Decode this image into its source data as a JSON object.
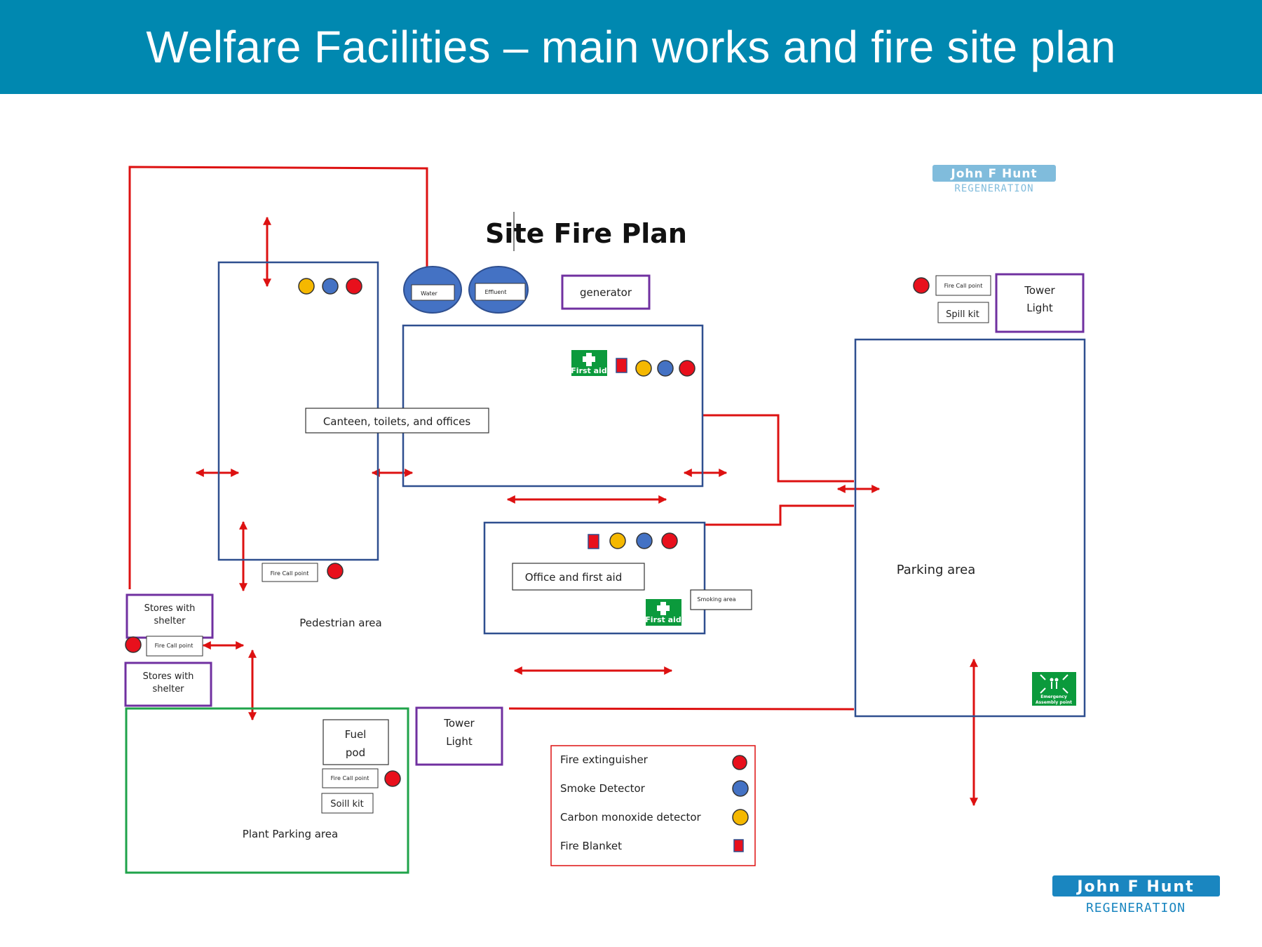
{
  "header": {
    "title": "Welfare Facilities – main works and fire site plan",
    "background": "#0088b0"
  },
  "plan_title": "Site Fire Plan",
  "logo_top": {
    "line1": "John F Hunt",
    "line2": "REGENERATION"
  },
  "logo_bottom": {
    "line1": "John F Hunt",
    "line2": "REGENERATION"
  },
  "tanks": {
    "water": "Water",
    "effluent": "Effluent"
  },
  "labels": {
    "generator": "generator",
    "canteen": "Canteen, toilets, and offices",
    "office": "Office and first aid",
    "smoking_area": "Smoking area",
    "pedestrian_area": "Pedestrian area",
    "parking_area": "Parking area",
    "plant_parking": "Plant Parking area",
    "stores_1": [
      "Stores with",
      "shelter"
    ],
    "stores_2": [
      "Stores with",
      "shelter"
    ],
    "tower_light_top": [
      "Tower",
      "Light"
    ],
    "tower_light_bottom": [
      "Tower",
      "Light"
    ],
    "fuel_pod": [
      "Fuel",
      "pod"
    ],
    "fire_call_point": "Fire Call point",
    "spill_kit_top": "Spill kit",
    "spill_kit_bottom": "Soill kit",
    "first_aid": "First aid",
    "emergency_line1": "Emergency",
    "emergency_line2": "Assembly point"
  },
  "legend": {
    "items": [
      {
        "label": "Fire extinguisher",
        "symbol": "extinguisher"
      },
      {
        "label": "Smoke Detector",
        "symbol": "smoke"
      },
      {
        "label": "Carbon monoxide detector",
        "symbol": "co"
      },
      {
        "label": "Fire Blanket",
        "symbol": "blanket"
      }
    ]
  },
  "colors": {
    "red": "#e8101c",
    "route_red": "#dd1111",
    "blue": "#4472c4",
    "yellow": "#f5b800",
    "navy_outline": "#2f4f8f",
    "purple": "#7030a0",
    "green_outline": "#1fa34a",
    "first_aid_green": "#0b9a3c",
    "logo_blue": "#1a86c0"
  }
}
